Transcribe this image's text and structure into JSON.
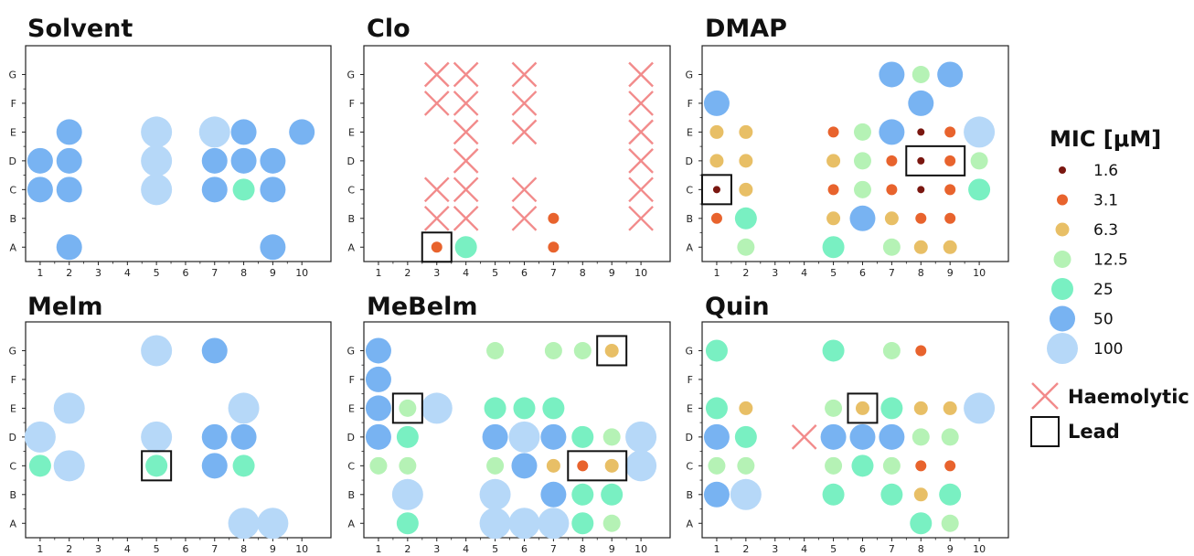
{
  "legend": {
    "title": "MIC [μM]",
    "levels": [
      {
        "label": "1.6",
        "value": 1.6,
        "color": "#7a1710"
      },
      {
        "label": "3.1",
        "value": 3.1,
        "color": "#e8632d"
      },
      {
        "label": "6.3",
        "value": 6.3,
        "color": "#e8bf66"
      },
      {
        "label": "12.5",
        "value": 12.5,
        "color": "#b5f2b5"
      },
      {
        "label": "25",
        "value": 25,
        "color": "#79f0c2"
      },
      {
        "label": "50",
        "value": 50,
        "color": "#78b3f2"
      },
      {
        "label": "100",
        "value": 100,
        "color": "#b6d8f8"
      }
    ],
    "haemolytic_label": "Haemolytic",
    "haemolytic_color": "#f28b8b",
    "lead_label": "Lead"
  },
  "chart_data": [
    {
      "type": "scatter",
      "title": "Solvent",
      "x_ticks": [
        "1",
        "2",
        "3",
        "4",
        "5",
        "6",
        "7",
        "8",
        "9",
        "10"
      ],
      "y_ticks": [
        "A",
        "B",
        "C",
        "D",
        "E",
        "F",
        "G"
      ],
      "points": [
        {
          "x": 2,
          "y": "A",
          "mic": 50
        },
        {
          "x": 9,
          "y": "A",
          "mic": 50
        },
        {
          "x": 1,
          "y": "C",
          "mic": 50
        },
        {
          "x": 2,
          "y": "C",
          "mic": 50
        },
        {
          "x": 5,
          "y": "C",
          "mic": 100
        },
        {
          "x": 7,
          "y": "C",
          "mic": 50
        },
        {
          "x": 8,
          "y": "C",
          "mic": 25
        },
        {
          "x": 9,
          "y": "C",
          "mic": 50
        },
        {
          "x": 1,
          "y": "D",
          "mic": 50
        },
        {
          "x": 2,
          "y": "D",
          "mic": 50
        },
        {
          "x": 5,
          "y": "D",
          "mic": 100
        },
        {
          "x": 7,
          "y": "D",
          "mic": 50
        },
        {
          "x": 8,
          "y": "D",
          "mic": 50
        },
        {
          "x": 9,
          "y": "D",
          "mic": 50
        },
        {
          "x": 2,
          "y": "E",
          "mic": 50
        },
        {
          "x": 5,
          "y": "E",
          "mic": 100
        },
        {
          "x": 7,
          "y": "E",
          "mic": 100
        },
        {
          "x": 8,
          "y": "E",
          "mic": 50
        },
        {
          "x": 10,
          "y": "E",
          "mic": 50
        }
      ],
      "haemolytic": [],
      "leads": []
    },
    {
      "type": "scatter",
      "title": "Clo",
      "x_ticks": [
        "1",
        "2",
        "3",
        "4",
        "5",
        "6",
        "7",
        "8",
        "9",
        "10"
      ],
      "y_ticks": [
        "A",
        "B",
        "C",
        "D",
        "E",
        "F",
        "G"
      ],
      "points": [
        {
          "x": 3,
          "y": "A",
          "mic": 3.1
        },
        {
          "x": 4,
          "y": "A",
          "mic": 25
        },
        {
          "x": 7,
          "y": "A",
          "mic": 3.1
        },
        {
          "x": 7,
          "y": "B",
          "mic": 3.1
        }
      ],
      "haemolytic": [
        {
          "x": 3,
          "y": "B"
        },
        {
          "x": 4,
          "y": "B"
        },
        {
          "x": 6,
          "y": "B"
        },
        {
          "x": 10,
          "y": "B"
        },
        {
          "x": 3,
          "y": "C"
        },
        {
          "x": 4,
          "y": "C"
        },
        {
          "x": 6,
          "y": "C"
        },
        {
          "x": 10,
          "y": "C"
        },
        {
          "x": 4,
          "y": "D"
        },
        {
          "x": 10,
          "y": "D"
        },
        {
          "x": 4,
          "y": "E"
        },
        {
          "x": 6,
          "y": "E"
        },
        {
          "x": 10,
          "y": "E"
        },
        {
          "x": 3,
          "y": "F"
        },
        {
          "x": 4,
          "y": "F"
        },
        {
          "x": 6,
          "y": "F"
        },
        {
          "x": 10,
          "y": "F"
        },
        {
          "x": 3,
          "y": "G"
        },
        {
          "x": 4,
          "y": "G"
        },
        {
          "x": 6,
          "y": "G"
        },
        {
          "x": 10,
          "y": "G"
        }
      ],
      "leads": [
        {
          "x_from": 3,
          "x_to": 3,
          "y": "A"
        }
      ]
    },
    {
      "type": "scatter",
      "title": "DMAP",
      "x_ticks": [
        "1",
        "2",
        "3",
        "4",
        "5",
        "6",
        "7",
        "8",
        "9",
        "10"
      ],
      "y_ticks": [
        "A",
        "B",
        "C",
        "D",
        "E",
        "F",
        "G"
      ],
      "points": [
        {
          "x": 2,
          "y": "A",
          "mic": 12.5
        },
        {
          "x": 5,
          "y": "A",
          "mic": 25
        },
        {
          "x": 7,
          "y": "A",
          "mic": 12.5
        },
        {
          "x": 8,
          "y": "A",
          "mic": 6.3
        },
        {
          "x": 9,
          "y": "A",
          "mic": 6.3
        },
        {
          "x": 1,
          "y": "B",
          "mic": 3.1
        },
        {
          "x": 2,
          "y": "B",
          "mic": 25
        },
        {
          "x": 5,
          "y": "B",
          "mic": 6.3
        },
        {
          "x": 6,
          "y": "B",
          "mic": 50
        },
        {
          "x": 7,
          "y": "B",
          "mic": 6.3
        },
        {
          "x": 8,
          "y": "B",
          "mic": 3.1
        },
        {
          "x": 9,
          "y": "B",
          "mic": 3.1
        },
        {
          "x": 1,
          "y": "C",
          "mic": 1.6
        },
        {
          "x": 2,
          "y": "C",
          "mic": 6.3
        },
        {
          "x": 5,
          "y": "C",
          "mic": 3.1
        },
        {
          "x": 6,
          "y": "C",
          "mic": 12.5
        },
        {
          "x": 7,
          "y": "C",
          "mic": 3.1
        },
        {
          "x": 8,
          "y": "C",
          "mic": 1.6
        },
        {
          "x": 9,
          "y": "C",
          "mic": 3.1
        },
        {
          "x": 10,
          "y": "C",
          "mic": 25
        },
        {
          "x": 1,
          "y": "D",
          "mic": 6.3
        },
        {
          "x": 2,
          "y": "D",
          "mic": 6.3
        },
        {
          "x": 5,
          "y": "D",
          "mic": 6.3
        },
        {
          "x": 6,
          "y": "D",
          "mic": 12.5
        },
        {
          "x": 7,
          "y": "D",
          "mic": 3.1
        },
        {
          "x": 8,
          "y": "D",
          "mic": 1.6
        },
        {
          "x": 9,
          "y": "D",
          "mic": 3.1
        },
        {
          "x": 10,
          "y": "D",
          "mic": 12.5
        },
        {
          "x": 1,
          "y": "E",
          "mic": 6.3
        },
        {
          "x": 2,
          "y": "E",
          "mic": 6.3
        },
        {
          "x": 5,
          "y": "E",
          "mic": 3.1
        },
        {
          "x": 6,
          "y": "E",
          "mic": 12.5
        },
        {
          "x": 7,
          "y": "E",
          "mic": 50
        },
        {
          "x": 8,
          "y": "E",
          "mic": 1.6
        },
        {
          "x": 9,
          "y": "E",
          "mic": 3.1
        },
        {
          "x": 10,
          "y": "E",
          "mic": 100
        },
        {
          "x": 1,
          "y": "F",
          "mic": 50
        },
        {
          "x": 8,
          "y": "F",
          "mic": 50
        },
        {
          "x": 7,
          "y": "G",
          "mic": 50
        },
        {
          "x": 8,
          "y": "G",
          "mic": 12.5
        },
        {
          "x": 9,
          "y": "G",
          "mic": 50
        }
      ],
      "haemolytic": [],
      "leads": [
        {
          "x_from": 1,
          "x_to": 1,
          "y": "C"
        },
        {
          "x_from": 8,
          "x_to": 9,
          "y": "D"
        }
      ]
    },
    {
      "type": "scatter",
      "title": "Melm",
      "x_ticks": [
        "1",
        "2",
        "3",
        "4",
        "5",
        "6",
        "7",
        "8",
        "9",
        "10"
      ],
      "y_ticks": [
        "A",
        "B",
        "C",
        "D",
        "E",
        "F",
        "G"
      ],
      "points": [
        {
          "x": 8,
          "y": "A",
          "mic": 100
        },
        {
          "x": 9,
          "y": "A",
          "mic": 100
        },
        {
          "x": 1,
          "y": "C",
          "mic": 25
        },
        {
          "x": 2,
          "y": "C",
          "mic": 100
        },
        {
          "x": 5,
          "y": "C",
          "mic": 25
        },
        {
          "x": 7,
          "y": "C",
          "mic": 50
        },
        {
          "x": 8,
          "y": "C",
          "mic": 25
        },
        {
          "x": 1,
          "y": "D",
          "mic": 100
        },
        {
          "x": 5,
          "y": "D",
          "mic": 100
        },
        {
          "x": 7,
          "y": "D",
          "mic": 50
        },
        {
          "x": 8,
          "y": "D",
          "mic": 50
        },
        {
          "x": 2,
          "y": "E",
          "mic": 100
        },
        {
          "x": 8,
          "y": "E",
          "mic": 100
        },
        {
          "x": 5,
          "y": "G",
          "mic": 100
        },
        {
          "x": 7,
          "y": "G",
          "mic": 50
        }
      ],
      "haemolytic": [],
      "leads": [
        {
          "x_from": 5,
          "x_to": 5,
          "y": "C"
        }
      ]
    },
    {
      "type": "scatter",
      "title": "MeBelm",
      "x_ticks": [
        "1",
        "2",
        "3",
        "4",
        "5",
        "6",
        "7",
        "8",
        "9",
        "10"
      ],
      "y_ticks": [
        "A",
        "B",
        "C",
        "D",
        "E",
        "F",
        "G"
      ],
      "points": [
        {
          "x": 2,
          "y": "A",
          "mic": 25
        },
        {
          "x": 5,
          "y": "A",
          "mic": 100
        },
        {
          "x": 6,
          "y": "A",
          "mic": 100
        },
        {
          "x": 7,
          "y": "A",
          "mic": 100
        },
        {
          "x": 8,
          "y": "A",
          "mic": 25
        },
        {
          "x": 9,
          "y": "A",
          "mic": 12.5
        },
        {
          "x": 2,
          "y": "B",
          "mic": 100
        },
        {
          "x": 5,
          "y": "B",
          "mic": 100
        },
        {
          "x": 7,
          "y": "B",
          "mic": 50
        },
        {
          "x": 8,
          "y": "B",
          "mic": 25
        },
        {
          "x": 9,
          "y": "B",
          "mic": 25
        },
        {
          "x": 1,
          "y": "C",
          "mic": 12.5
        },
        {
          "x": 2,
          "y": "C",
          "mic": 12.5
        },
        {
          "x": 5,
          "y": "C",
          "mic": 12.5
        },
        {
          "x": 6,
          "y": "C",
          "mic": 50
        },
        {
          "x": 7,
          "y": "C",
          "mic": 6.3
        },
        {
          "x": 8,
          "y": "C",
          "mic": 3.1
        },
        {
          "x": 9,
          "y": "C",
          "mic": 6.3
        },
        {
          "x": 10,
          "y": "C",
          "mic": 100
        },
        {
          "x": 1,
          "y": "D",
          "mic": 50
        },
        {
          "x": 2,
          "y": "D",
          "mic": 25
        },
        {
          "x": 5,
          "y": "D",
          "mic": 50
        },
        {
          "x": 6,
          "y": "D",
          "mic": 100
        },
        {
          "x": 7,
          "y": "D",
          "mic": 50
        },
        {
          "x": 8,
          "y": "D",
          "mic": 25
        },
        {
          "x": 9,
          "y": "D",
          "mic": 12.5
        },
        {
          "x": 10,
          "y": "D",
          "mic": 100
        },
        {
          "x": 1,
          "y": "E",
          "mic": 50
        },
        {
          "x": 2,
          "y": "E",
          "mic": 12.5
        },
        {
          "x": 3,
          "y": "E",
          "mic": 100
        },
        {
          "x": 5,
          "y": "E",
          "mic": 25
        },
        {
          "x": 6,
          "y": "E",
          "mic": 25
        },
        {
          "x": 7,
          "y": "E",
          "mic": 25
        },
        {
          "x": 1,
          "y": "F",
          "mic": 50
        },
        {
          "x": 1,
          "y": "G",
          "mic": 50
        },
        {
          "x": 5,
          "y": "G",
          "mic": 12.5
        },
        {
          "x": 7,
          "y": "G",
          "mic": 12.5
        },
        {
          "x": 8,
          "y": "G",
          "mic": 12.5
        },
        {
          "x": 9,
          "y": "G",
          "mic": 6.3
        }
      ],
      "haemolytic": [],
      "leads": [
        {
          "x_from": 2,
          "x_to": 2,
          "y": "E"
        },
        {
          "x_from": 9,
          "x_to": 9,
          "y": "G"
        },
        {
          "x_from": 8,
          "x_to": 9,
          "y": "C"
        }
      ]
    },
    {
      "type": "scatter",
      "title": "Quin",
      "x_ticks": [
        "1",
        "2",
        "3",
        "4",
        "5",
        "6",
        "7",
        "8",
        "9",
        "10"
      ],
      "y_ticks": [
        "A",
        "B",
        "C",
        "D",
        "E",
        "F",
        "G"
      ],
      "points": [
        {
          "x": 8,
          "y": "A",
          "mic": 25
        },
        {
          "x": 9,
          "y": "A",
          "mic": 12.5
        },
        {
          "x": 1,
          "y": "B",
          "mic": 50
        },
        {
          "x": 2,
          "y": "B",
          "mic": 100
        },
        {
          "x": 5,
          "y": "B",
          "mic": 25
        },
        {
          "x": 7,
          "y": "B",
          "mic": 25
        },
        {
          "x": 8,
          "y": "B",
          "mic": 6.3
        },
        {
          "x": 9,
          "y": "B",
          "mic": 25
        },
        {
          "x": 1,
          "y": "C",
          "mic": 12.5
        },
        {
          "x": 2,
          "y": "C",
          "mic": 12.5
        },
        {
          "x": 5,
          "y": "C",
          "mic": 12.5
        },
        {
          "x": 6,
          "y": "C",
          "mic": 25
        },
        {
          "x": 7,
          "y": "C",
          "mic": 12.5
        },
        {
          "x": 8,
          "y": "C",
          "mic": 3.1
        },
        {
          "x": 9,
          "y": "C",
          "mic": 3.1
        },
        {
          "x": 1,
          "y": "D",
          "mic": 50
        },
        {
          "x": 2,
          "y": "D",
          "mic": 25
        },
        {
          "x": 5,
          "y": "D",
          "mic": 50
        },
        {
          "x": 6,
          "y": "D",
          "mic": 50
        },
        {
          "x": 7,
          "y": "D",
          "mic": 50
        },
        {
          "x": 8,
          "y": "D",
          "mic": 12.5
        },
        {
          "x": 9,
          "y": "D",
          "mic": 12.5
        },
        {
          "x": 1,
          "y": "E",
          "mic": 25
        },
        {
          "x": 2,
          "y": "E",
          "mic": 6.3
        },
        {
          "x": 5,
          "y": "E",
          "mic": 12.5
        },
        {
          "x": 6,
          "y": "E",
          "mic": 6.3
        },
        {
          "x": 7,
          "y": "E",
          "mic": 25
        },
        {
          "x": 8,
          "y": "E",
          "mic": 6.3
        },
        {
          "x": 9,
          "y": "E",
          "mic": 6.3
        },
        {
          "x": 10,
          "y": "E",
          "mic": 100
        },
        {
          "x": 1,
          "y": "G",
          "mic": 25
        },
        {
          "x": 5,
          "y": "G",
          "mic": 25
        },
        {
          "x": 7,
          "y": "G",
          "mic": 12.5
        },
        {
          "x": 8,
          "y": "G",
          "mic": 3.1
        }
      ],
      "haemolytic": [
        {
          "x": 4,
          "y": "D"
        }
      ],
      "leads": [
        {
          "x_from": 6,
          "x_to": 6,
          "y": "E"
        }
      ]
    }
  ]
}
